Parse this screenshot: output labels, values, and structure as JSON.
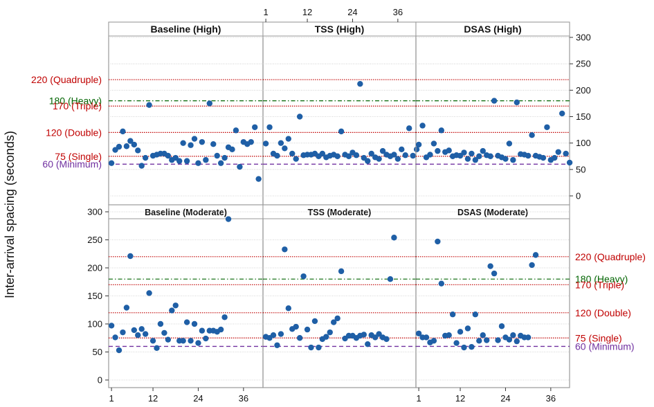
{
  "chart_data": {
    "type": "scatter",
    "ylabel": "Inter-arrival spacing (seconds)",
    "xticks": [
      1,
      12,
      24,
      36
    ],
    "xlim": [
      0,
      40
    ],
    "ylim": [
      -10,
      335
    ],
    "yticks": [
      0,
      50,
      100,
      150,
      200,
      250,
      300
    ],
    "reference_lines": [
      {
        "value": 220,
        "label": "220 (Quadruple)",
        "color": "#c00000",
        "style": "dotted"
      },
      {
        "value": 180,
        "label": "180 (Heavy)",
        "color": "#006400",
        "style": "dashdot"
      },
      {
        "value": 170,
        "label": "170 (Triple)",
        "color": "#c00000",
        "style": "dotted"
      },
      {
        "value": 120,
        "label": "120 (Double)",
        "color": "#c00000",
        "style": "dotted"
      },
      {
        "value": 75,
        "label": "75 (Single)",
        "color": "#c00000",
        "style": "dotted"
      },
      {
        "value": 60,
        "label": "60 (Minimum)",
        "color": "#7030a0",
        "style": "dashed"
      }
    ],
    "point_color": "#1f5fa6",
    "panels": [
      {
        "title": "Baseline (High)",
        "row": 0,
        "col": 0,
        "values": [
          62,
          87,
          93,
          122,
          94,
          104,
          97,
          86,
          57,
          72,
          172,
          76,
          78,
          80,
          80,
          76,
          68,
          72,
          66,
          100,
          66,
          96,
          108,
          62,
          102,
          68,
          175,
          98,
          76,
          62,
          72,
          92,
          88,
          124,
          55,
          102,
          98,
          102,
          130,
          32
        ]
      },
      {
        "title": "TSS (High)",
        "row": 0,
        "col": 1,
        "values": [
          99,
          130,
          80,
          76,
          100,
          90,
          108,
          80,
          70,
          150,
          77,
          78,
          78,
          80,
          75,
          80,
          73,
          76,
          78,
          75,
          122,
          78,
          75,
          82,
          77,
          212,
          72,
          66,
          80,
          73,
          70,
          85,
          78,
          75,
          78,
          70,
          88,
          77,
          128,
          76,
          88
        ]
      },
      {
        "title": "DSAS (High)",
        "row": 0,
        "col": 2,
        "values": [
          97,
          133,
          73,
          78,
          99,
          85,
          124,
          83,
          86,
          75,
          77,
          76,
          82,
          70,
          80,
          68,
          75,
          85,
          77,
          75,
          180,
          76,
          73,
          70,
          99,
          68,
          177,
          79,
          78,
          76,
          115,
          76,
          74,
          72,
          130,
          68,
          72,
          83,
          156,
          80,
          63
        ]
      },
      {
        "title": "Baseline (Moderate)",
        "row": 1,
        "col": 0,
        "values": [
          97,
          76,
          53,
          85,
          129,
          221,
          89,
          80,
          91,
          82,
          155,
          70,
          57,
          100,
          84,
          72,
          124,
          133,
          70,
          70,
          103,
          70,
          100,
          66,
          88,
          74,
          88,
          88,
          86,
          90,
          112,
          287
        ]
      },
      {
        "title": "TSS (Moderate)",
        "row": 1,
        "col": 1,
        "values": [
          77,
          75,
          80,
          62,
          82,
          233,
          128,
          91,
          95,
          75,
          185,
          90,
          58,
          105,
          58,
          73,
          77,
          85,
          103,
          110,
          194,
          74,
          79,
          79,
          75,
          79,
          81,
          64,
          80,
          76,
          82,
          76,
          73,
          180,
          254
        ]
      },
      {
        "title": "DSAS (Moderate)",
        "row": 1,
        "col": 2,
        "values": [
          83,
          76,
          76,
          67,
          70,
          247,
          172,
          79,
          80,
          117,
          66,
          86,
          58,
          92,
          59,
          117,
          70,
          80,
          71,
          203,
          190,
          71,
          96,
          76,
          72,
          80,
          69,
          79,
          76,
          76,
          205,
          223
        ]
      }
    ]
  }
}
